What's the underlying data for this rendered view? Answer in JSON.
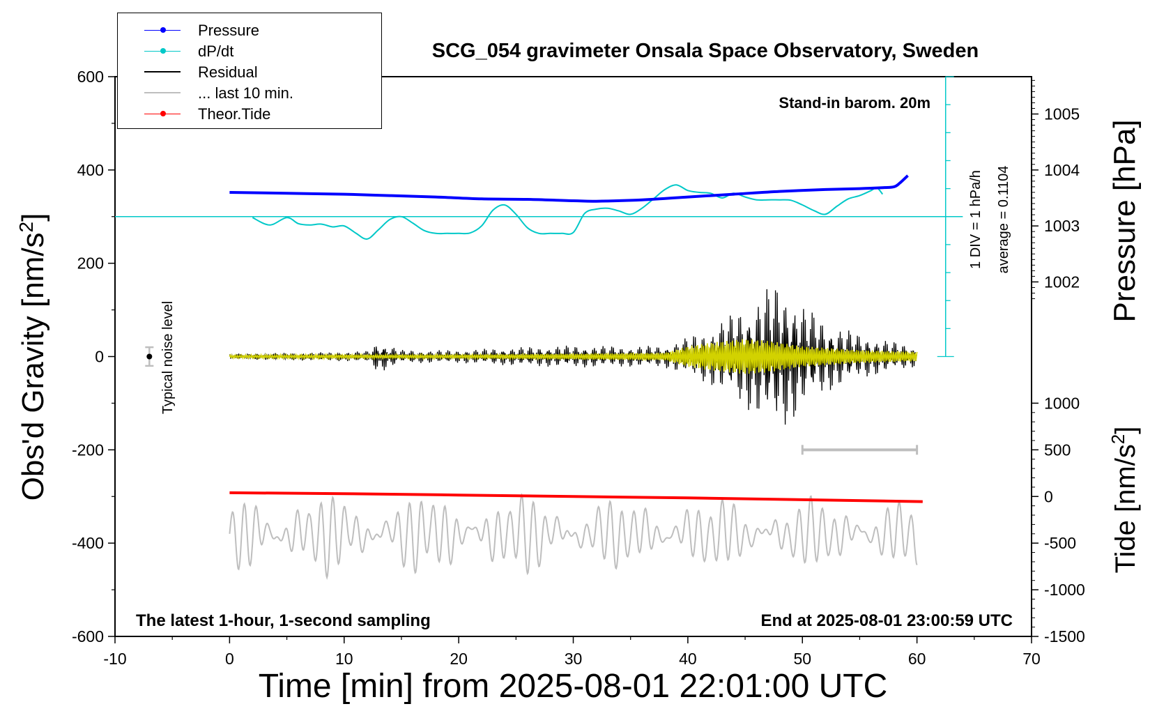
{
  "chart_data": {
    "type": "line",
    "title": "SCG_054 gravimeter Onsala Space Observatory, Sweden",
    "xlabel": "Time [min] from 2025-08-01 22:01:00 UTC",
    "ylabel_left": "Obs'd Gravity [nm/s",
    "ylabel_left_sup": "2",
    "ylabel_left_end": "]",
    "ylabel_right_pressure": "Pressure [hPa]",
    "ylabel_right_tide": "Tide [nm/s",
    "ylabel_right_tide_sup": "2",
    "ylabel_right_tide_end": "]",
    "xlim": [
      -10,
      70
    ],
    "ylim_left": [
      -600,
      600
    ],
    "x_ticks": [
      -10,
      0,
      10,
      20,
      30,
      40,
      50,
      60,
      70
    ],
    "x_tick_labels": [
      "-10",
      "0",
      "10",
      "20",
      "30",
      "40",
      "50",
      "60",
      "70"
    ],
    "y_ticks_left": [
      600,
      400,
      200,
      0,
      -200,
      -400,
      -600
    ],
    "y_tick_labels_left": [
      "600",
      "400",
      "200",
      "0",
      "-200",
      "-400",
      "-600"
    ],
    "pressure_ticks": [
      1005,
      1004,
      1003,
      1002
    ],
    "pressure_tick_labels": [
      "1005",
      "1004",
      "1003",
      "1002"
    ],
    "tide_ticks": [
      1000,
      500,
      0,
      -500,
      -1000,
      -1500
    ],
    "tide_tick_labels": [
      "1000",
      "500",
      "0",
      "-500",
      "-1000",
      "-1500"
    ],
    "annotations": {
      "top_right": "Stand-in barom. 20m",
      "bottom_left": "The latest 1-hour, 1-second sampling",
      "bottom_right": "End at 2025-08-01 23:00:59 UTC",
      "noise": "Typical noise level",
      "div": "1 DIV = 1 hPa/h",
      "average": "average = 0.1104"
    },
    "legend": [
      {
        "label": "Pressure",
        "color": "#0000ff",
        "marker": true
      },
      {
        "label": "dP/dt",
        "color": "#00c8c8",
        "marker": true
      },
      {
        "label": "Residual",
        "color": "#000000",
        "marker": false
      },
      {
        "label": "... last 10 min.",
        "color": "#bebebe",
        "marker": false
      },
      {
        "label": "Theor.Tide",
        "color": "#ff0000",
        "marker": true
      }
    ],
    "series": [
      {
        "name": "Pressure",
        "color": "#0000ff",
        "axis": "left-scale",
        "x": [
          0,
          5,
          10,
          14,
          18,
          22,
          26,
          30,
          32,
          36,
          40,
          44,
          48,
          52,
          55,
          57,
          58,
          58.5,
          59.2
        ],
        "y": [
          352,
          350,
          348,
          345,
          342,
          338,
          337,
          334,
          333,
          336,
          342,
          348,
          354,
          358,
          360,
          362,
          364,
          372,
          388
        ]
      },
      {
        "name": "dP/dt",
        "color": "#00c8c8",
        "axis": "left-scale",
        "x": [
          2,
          3.5,
          5,
          6,
          7,
          8,
          9,
          10,
          11,
          12,
          13,
          14,
          15,
          16,
          17,
          18,
          19,
          20,
          21,
          22,
          23,
          24,
          25,
          26,
          27,
          28,
          29,
          30,
          31,
          32,
          33,
          34,
          35,
          36,
          37,
          38,
          39,
          40,
          41,
          42,
          43,
          44,
          45,
          46,
          47,
          48,
          49,
          50,
          51,
          52,
          53,
          54,
          55,
          56,
          56.5,
          57
        ],
        "y": [
          298,
          282,
          298,
          285,
          282,
          284,
          278,
          280,
          265,
          252,
          272,
          294,
          300,
          286,
          270,
          264,
          264,
          264,
          265,
          280,
          314,
          325,
          305,
          276,
          264,
          264,
          264,
          266,
          307,
          316,
          318,
          312,
          305,
          318,
          338,
          358,
          368,
          356,
          352,
          350,
          340,
          350,
          342,
          336,
          336,
          336,
          335,
          325,
          313,
          305,
          322,
          338,
          345,
          356,
          362,
          348
        ]
      },
      {
        "name": "Theor.Tide",
        "color": "#ff0000",
        "axis": "left-scale",
        "x": [
          0,
          10,
          20,
          30,
          40,
          50,
          60.5
        ],
        "y": [
          -292,
          -294,
          -297,
          -300,
          -303,
          -307,
          -311
        ]
      }
    ],
    "residual_envelope": {
      "name": "Residual",
      "color": "#000000",
      "x": [
        0,
        5,
        10,
        12,
        13,
        15,
        20,
        25,
        30,
        35,
        38,
        40,
        42,
        44,
        46,
        47,
        48,
        49,
        50,
        52,
        55,
        58,
        60
      ],
      "amplitude": [
        6,
        8,
        10,
        12,
        35,
        14,
        14,
        20,
        24,
        22,
        24,
        42,
        62,
        95,
        128,
        150,
        160,
        145,
        112,
        78,
        48,
        32,
        22
      ]
    },
    "filtered_envelope": {
      "color": "#d2d200",
      "x": [
        0,
        10,
        20,
        30,
        38,
        40,
        42,
        45,
        47,
        50,
        55,
        60
      ],
      "amplitude": [
        3,
        4,
        4,
        6,
        8,
        22,
        30,
        38,
        34,
        22,
        14,
        10
      ]
    },
    "last_10min_marker": {
      "x": [
        50,
        60
      ],
      "y": -200,
      "color": "#bebebe"
    },
    "tide_highfreq": {
      "color": "#bebebe",
      "center": -380,
      "amplitude": 75,
      "x": [
        0,
        60
      ]
    },
    "noise_marker": {
      "x": -7,
      "y": 0,
      "half_range": 20
    },
    "dpdt_zero_line": {
      "value": 300,
      "color": "#00c8c8"
    }
  }
}
